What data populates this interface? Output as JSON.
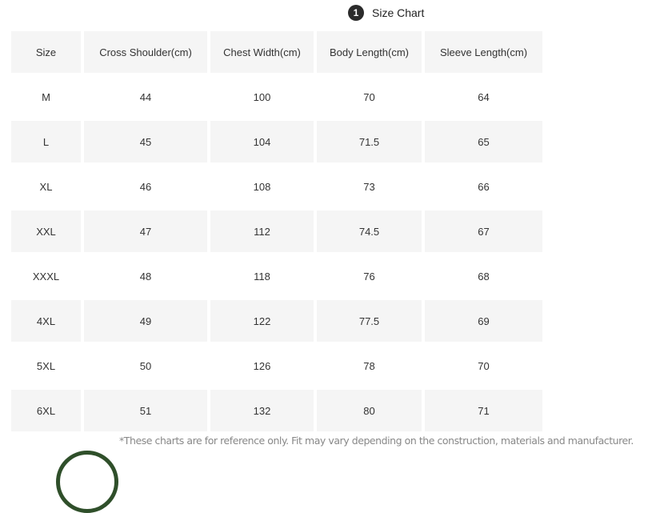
{
  "heading": {
    "number": "1",
    "title": "Size Chart"
  },
  "table": {
    "headers": [
      "Size",
      "Cross Shoulder(cm)",
      "Chest Width(cm)",
      "Body Length(cm)",
      "Sleeve Length(cm)"
    ],
    "rows": [
      [
        "M",
        "44",
        "100",
        "70",
        "64"
      ],
      [
        "L",
        "45",
        "104",
        "71.5",
        "65"
      ],
      [
        "XL",
        "46",
        "108",
        "73",
        "66"
      ],
      [
        "XXL",
        "47",
        "112",
        "74.5",
        "67"
      ],
      [
        "XXXL",
        "48",
        "118",
        "76",
        "68"
      ],
      [
        "4XL",
        "49",
        "122",
        "77.5",
        "69"
      ],
      [
        "5XL",
        "50",
        "126",
        "78",
        "70"
      ],
      [
        "6XL",
        "51",
        "132",
        "80",
        "71"
      ]
    ]
  },
  "note": "*These charts are for reference only. Fit may vary depending on the construction, materials and manufacturer.",
  "colors": {
    "stripe": "#f5f5f5",
    "badge": "#2b2b2b",
    "ring": "#2f4f2a"
  }
}
